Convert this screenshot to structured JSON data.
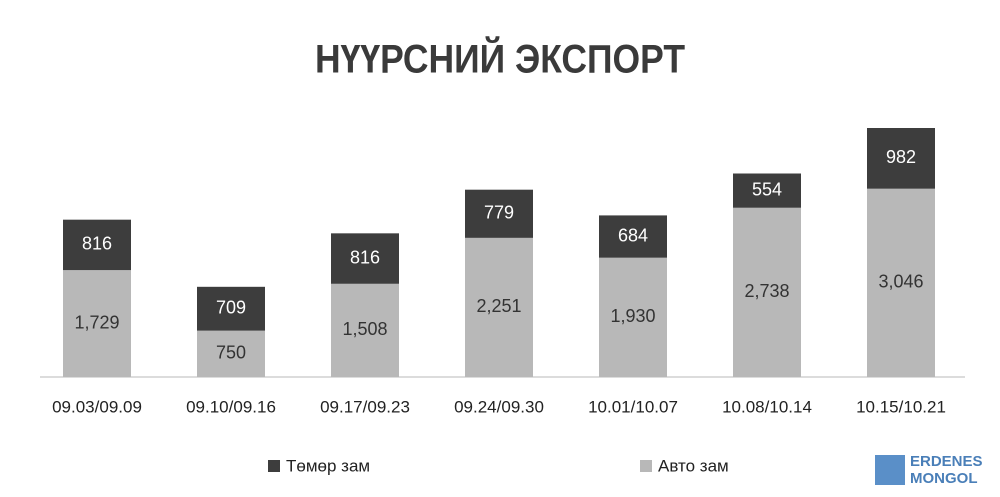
{
  "chart_data": {
    "type": "stacked_bar",
    "title": "НҮҮРСНИЙ ЭКСПОРТ",
    "categories": [
      "09.03/09.09",
      "09.10/09.16",
      "09.17/09.23",
      "09.24/09.30",
      "10.01/10.07",
      "10.08/10.14",
      "10.15/10.21"
    ],
    "series": [
      {
        "name": "Авто зам",
        "color": "#b8b8b8",
        "values": [
          1729,
          750,
          1508,
          2251,
          1930,
          2738,
          3046
        ],
        "value_labels": [
          "1,729",
          "750",
          "1,508",
          "2,251",
          "1,930",
          "2,738",
          "3,046"
        ]
      },
      {
        "name": "Төмөр зам",
        "color": "#3d3d3d",
        "values": [
          816,
          709,
          816,
          779,
          684,
          554,
          982
        ]
      }
    ]
  },
  "watermark": [
    "ERDENES",
    "MONGOL"
  ]
}
